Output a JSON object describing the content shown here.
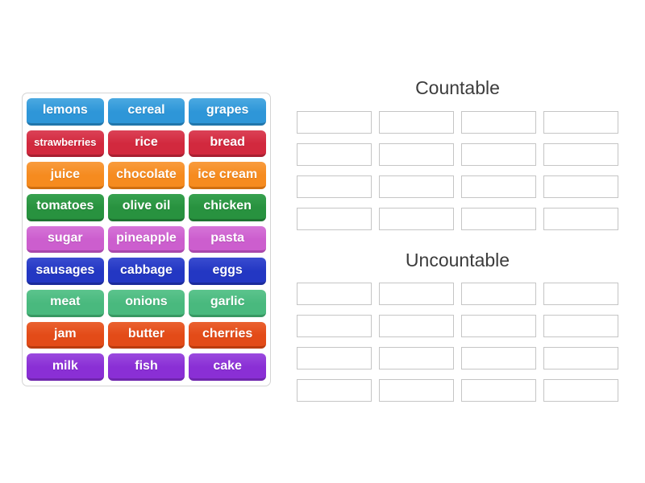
{
  "activity": {
    "type": "group-sort",
    "groups": [
      {
        "id": "countable",
        "label": "Countable",
        "slot_rows": 4,
        "slot_cols": 4
      },
      {
        "id": "uncountable",
        "label": "Uncountable",
        "slot_rows": 4,
        "slot_cols": 4
      }
    ]
  },
  "tiles": [
    {
      "label": "lemons",
      "color": "blue"
    },
    {
      "label": "cereal",
      "color": "blue"
    },
    {
      "label": "grapes",
      "color": "blue"
    },
    {
      "label": "strawberries",
      "color": "red"
    },
    {
      "label": "rice",
      "color": "red"
    },
    {
      "label": "bread",
      "color": "red"
    },
    {
      "label": "juice",
      "color": "orange"
    },
    {
      "label": "chocolate",
      "color": "orange"
    },
    {
      "label": "ice cream",
      "color": "orange"
    },
    {
      "label": "tomatoes",
      "color": "green"
    },
    {
      "label": "olive oil",
      "color": "green"
    },
    {
      "label": "chicken",
      "color": "green"
    },
    {
      "label": "sugar",
      "color": "orchid"
    },
    {
      "label": "pineapple",
      "color": "orchid"
    },
    {
      "label": "pasta",
      "color": "orchid"
    },
    {
      "label": "sausages",
      "color": "royalblue"
    },
    {
      "label": "cabbage",
      "color": "royalblue"
    },
    {
      "label": "eggs",
      "color": "royalblue"
    },
    {
      "label": "meat",
      "color": "seagreen"
    },
    {
      "label": "onions",
      "color": "seagreen"
    },
    {
      "label": "garlic",
      "color": "seagreen"
    },
    {
      "label": "jam",
      "color": "orangered"
    },
    {
      "label": "butter",
      "color": "orangered"
    },
    {
      "label": "cherries",
      "color": "orangered"
    },
    {
      "label": "milk",
      "color": "purple"
    },
    {
      "label": "fish",
      "color": "purple"
    },
    {
      "label": "cake",
      "color": "purple"
    }
  ],
  "colors": {
    "blue": {
      "light": "#4BA9E1",
      "base": "#2E96D8",
      "dark": "#2176AB"
    },
    "red": {
      "light": "#DB4257",
      "base": "#D2293E",
      "dark": "#A81F31"
    },
    "orange": {
      "light": "#F89C3E",
      "base": "#F68B1F",
      "dark": "#D06F10"
    },
    "green": {
      "light": "#37A14F",
      "base": "#28923F",
      "dark": "#1E7431"
    },
    "orchid": {
      "light": "#D675D8",
      "base": "#CC5ECE",
      "dark": "#A948AB"
    },
    "royalblue": {
      "light": "#3A4CD0",
      "base": "#2337C3",
      "dark": "#1B2B9B"
    },
    "seagreen": {
      "light": "#5CC48D",
      "base": "#49B97E",
      "dark": "#379862"
    },
    "orangered": {
      "light": "#EA6130",
      "base": "#E34B18",
      "dark": "#BA3C0F"
    },
    "purple": {
      "light": "#9B4ADE",
      "base": "#8A2FD5",
      "dark": "#7026AE"
    },
    "tile_text": "#FFFFFF",
    "title_text": "#3C3C3C",
    "slot_border": "#C5C5C5",
    "board_border": "#D4D4D4"
  }
}
